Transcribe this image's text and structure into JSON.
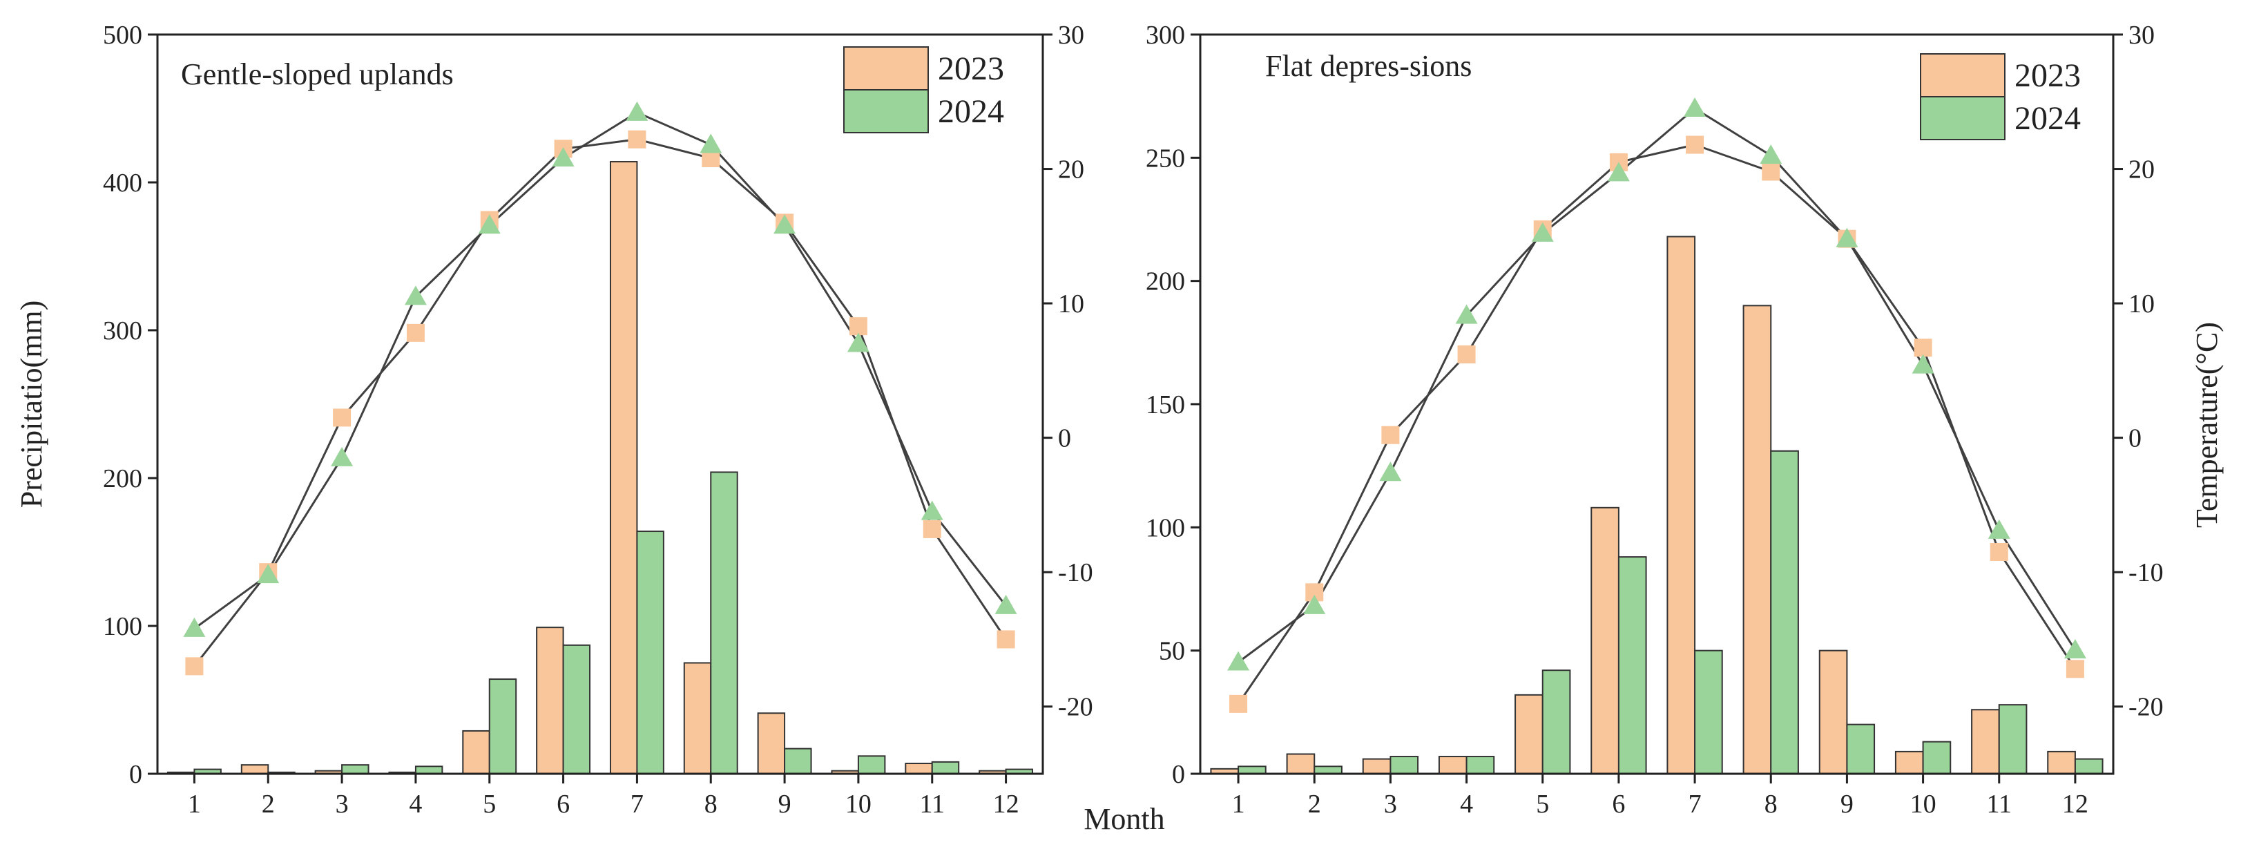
{
  "figure": {
    "xlabel": "Month",
    "colors": {
      "series_2023": "#F9C59A",
      "series_2024": "#9BD49B",
      "line": "#404040",
      "axis": "#222222"
    }
  },
  "chart_data": [
    {
      "type": "bar+line",
      "title": "Gentle-sloped uplands",
      "categories": [
        "1",
        "2",
        "3",
        "4",
        "5",
        "6",
        "7",
        "8",
        "9",
        "10",
        "11",
        "12"
      ],
      "ylabel_left": "Precipitatio(mm)",
      "ylim_left": [
        0,
        500
      ],
      "yticks_left": [
        0,
        100,
        200,
        300,
        400,
        500
      ],
      "ylabel_right": "",
      "ylim_right": [
        -25,
        30
      ],
      "yticks_right": [
        -20,
        -10,
        0,
        10,
        20,
        30
      ],
      "grid": false,
      "legend": {
        "placement": "top-right",
        "entries": [
          "2023",
          "2024"
        ]
      },
      "series": [
        {
          "name": "2023",
          "precipitation": [
            1,
            6,
            2,
            1,
            29,
            99,
            414,
            75,
            41,
            2,
            7,
            2
          ],
          "temperature": [
            -17,
            -10,
            1.5,
            7.8,
            16.2,
            21.5,
            22.2,
            20.8,
            16,
            8.3,
            -6.8,
            -15
          ],
          "marker": "square"
        },
        {
          "name": "2024",
          "precipitation": [
            3,
            1,
            6,
            5,
            64,
            87,
            164,
            204,
            17,
            12,
            8,
            3
          ],
          "temperature": [
            -14.2,
            -10.2,
            -1.5,
            10.5,
            15.8,
            20.8,
            24.2,
            21.8,
            15.8,
            7,
            -5.5,
            -12.5
          ],
          "marker": "triangle"
        }
      ]
    },
    {
      "type": "bar+line",
      "title": "Flat depres-sions",
      "categories": [
        "1",
        "2",
        "3",
        "4",
        "5",
        "6",
        "7",
        "8",
        "9",
        "10",
        "11",
        "12"
      ],
      "ylabel_left": "",
      "ylim_left": [
        0,
        300
      ],
      "yticks_left": [
        0,
        50,
        100,
        150,
        200,
        250,
        300
      ],
      "ylabel_right": "Temperature(°C)",
      "ylim_right": [
        -25,
        30
      ],
      "yticks_right": [
        -20,
        -10,
        0,
        10,
        20,
        30
      ],
      "grid": false,
      "legend": {
        "placement": "top-right",
        "entries": [
          "2023",
          "2024"
        ]
      },
      "series": [
        {
          "name": "2023",
          "precipitation": [
            2,
            8,
            6,
            7,
            32,
            108,
            218,
            190,
            50,
            9,
            26,
            9
          ],
          "temperature": [
            -19.8,
            -11.5,
            0.2,
            6.2,
            15.5,
            20.5,
            21.8,
            19.8,
            14.8,
            6.7,
            -8.5,
            -17.2
          ],
          "marker": "square"
        },
        {
          "name": "2024",
          "precipitation": [
            3,
            3,
            7,
            7,
            42,
            88,
            50,
            131,
            20,
            13,
            28,
            6
          ],
          "temperature": [
            -16.7,
            -12.5,
            -2.6,
            9.1,
            15.2,
            19.7,
            24.5,
            21,
            14.8,
            5.4,
            -6.9,
            -15.8
          ],
          "marker": "triangle"
        }
      ]
    }
  ]
}
